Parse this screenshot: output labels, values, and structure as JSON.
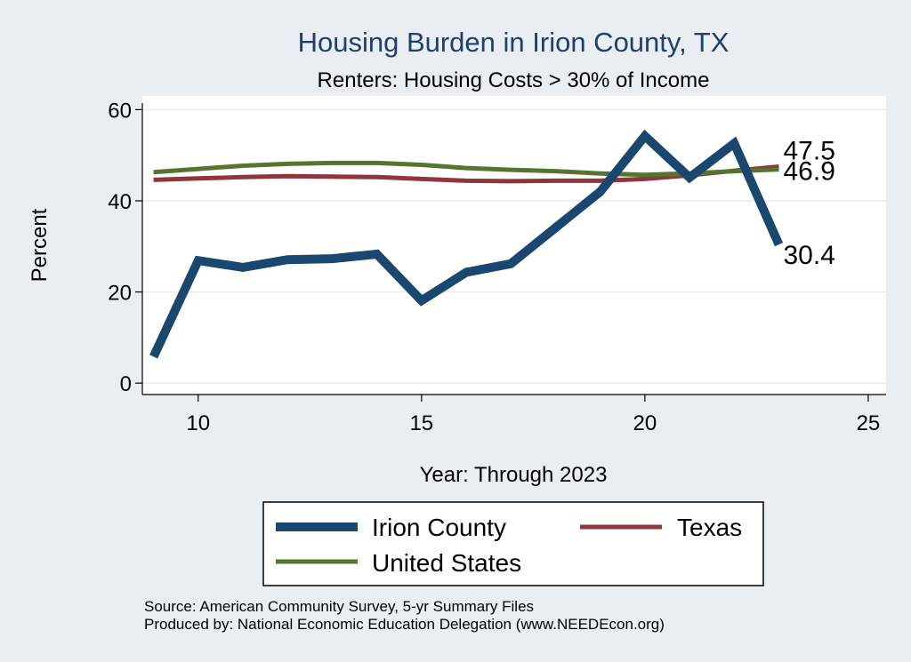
{
  "chart_data": {
    "type": "line",
    "title": "Housing Burden in Irion County, TX",
    "subtitle": "Renters: Housing Costs > 30% of Income",
    "xlabel": "Year: Through 2023",
    "ylabel": "Percent",
    "xlim": [
      8.75,
      25.4
    ],
    "ylim": [
      -2.5,
      63
    ],
    "xticks": [
      10,
      15,
      20,
      25
    ],
    "yticks": [
      0,
      20,
      40,
      60
    ],
    "grid": true,
    "legend_position": "bottom",
    "series": [
      {
        "name": "Irion County",
        "color": "#1a476f",
        "x": [
          9,
          10,
          11,
          12,
          13,
          14,
          15,
          16,
          17,
          18,
          19,
          20,
          21,
          22,
          23
        ],
        "values": [
          5.8,
          26.9,
          25.4,
          27.1,
          27.3,
          28.3,
          18.1,
          24.3,
          26.2,
          34.1,
          42.0,
          54.2,
          45.1,
          52.6,
          30.4
        ],
        "end_label": "30.4"
      },
      {
        "name": "Texas",
        "color": "#90353b",
        "x": [
          9,
          10,
          11,
          12,
          13,
          14,
          15,
          16,
          17,
          18,
          19,
          20,
          21,
          22,
          23
        ],
        "values": [
          44.6,
          44.9,
          45.2,
          45.4,
          45.3,
          45.2,
          44.8,
          44.4,
          44.3,
          44.4,
          44.4,
          44.8,
          45.6,
          46.6,
          47.5
        ],
        "end_label": "47.5"
      },
      {
        "name": "United States",
        "color": "#55752f",
        "x": [
          9,
          10,
          11,
          12,
          13,
          14,
          15,
          16,
          17,
          18,
          19,
          20,
          21,
          22,
          23
        ],
        "values": [
          46.3,
          47.0,
          47.7,
          48.1,
          48.3,
          48.3,
          47.9,
          47.2,
          46.8,
          46.5,
          46.0,
          45.7,
          46.0,
          46.5,
          46.9
        ],
        "end_label": "46.9"
      }
    ],
    "source_lines": [
      "Source: American Community Survey, 5-yr Summary Files",
      "Produced by: National Economic Education Delegation (www.NEEDEcon.org)"
    ]
  }
}
